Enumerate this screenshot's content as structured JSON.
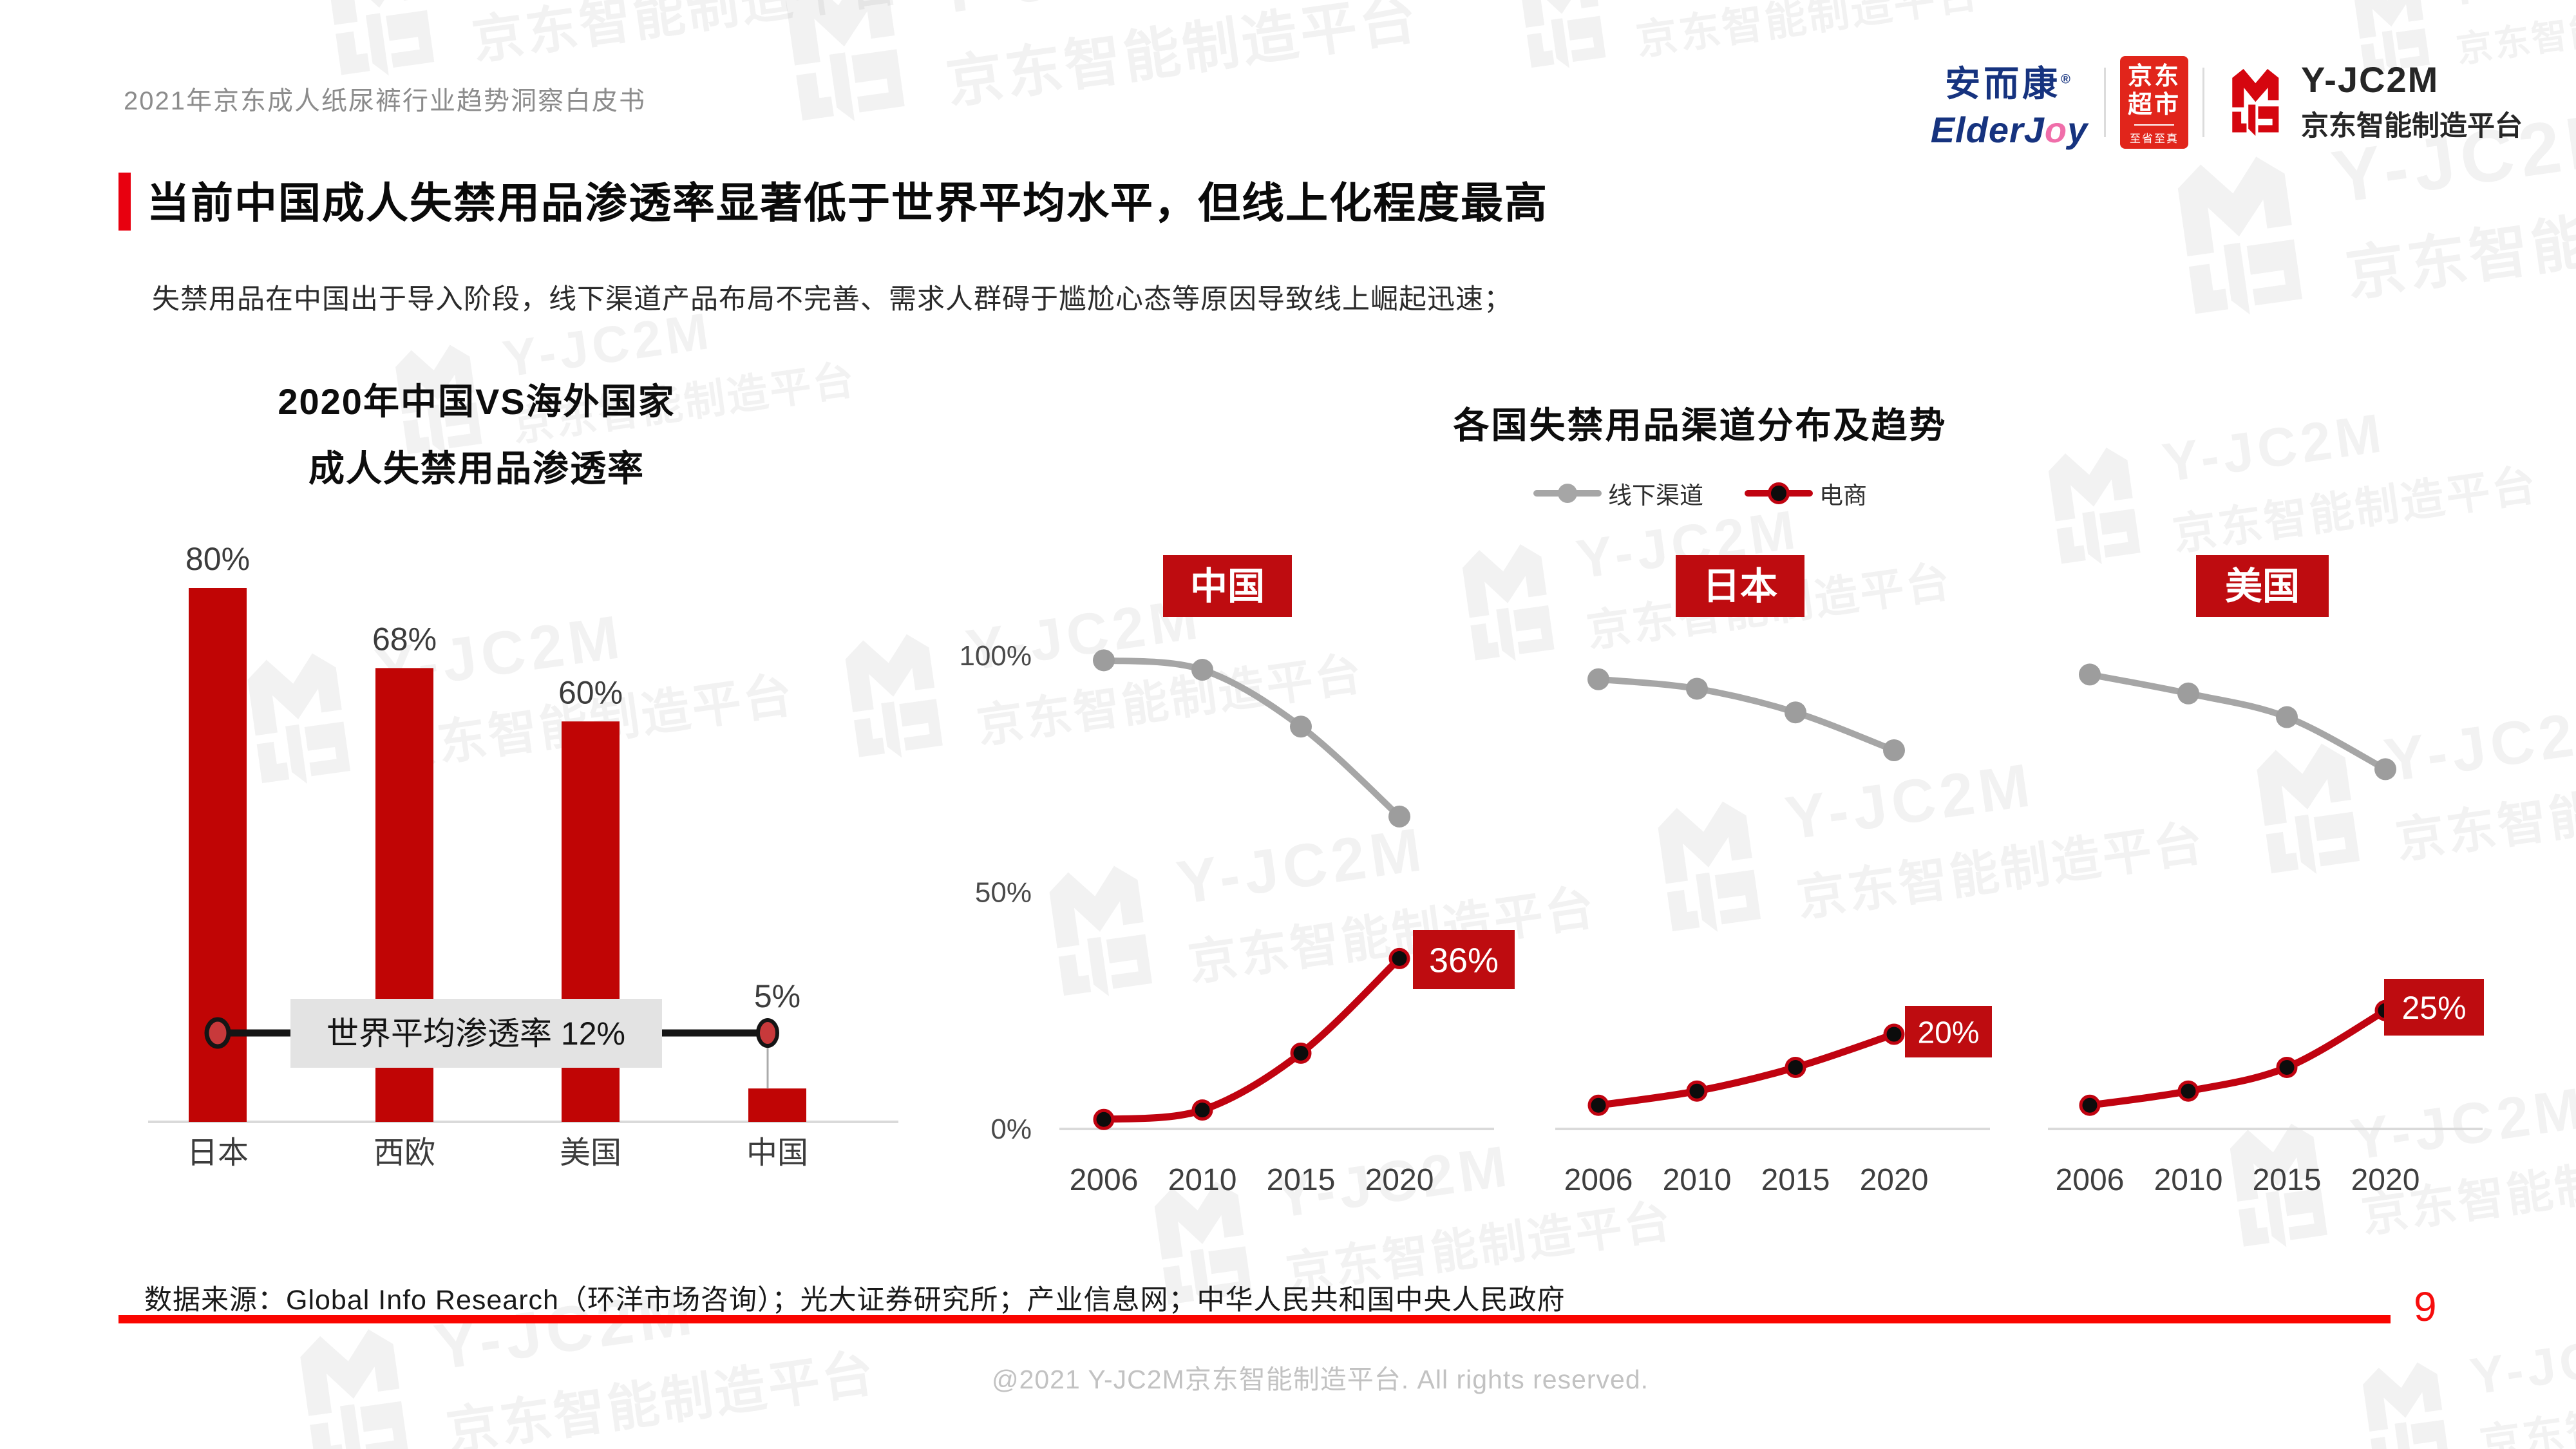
{
  "header": {
    "text": "2021年京东成人纸尿裤行业趋势洞察白皮书"
  },
  "logos": {
    "elderjoy_cn": "安而康",
    "elderjoy_reg": "®",
    "elderjoy_en_1": "ElderJ",
    "elderjoy_en_2": "o",
    "elderjoy_en_3": "y",
    "jd_market_line1": "京东",
    "jd_market_line2": "超市",
    "jd_market_sub": "至省至真",
    "y_jc2m_name": "Y-JC2M",
    "y_jc2m_sub": "京东智能制造平台"
  },
  "title_block": {
    "title": "当前中国成人失禁用品渗透率显著低于世界平均水平，但线上化程度最高",
    "subtitle": "失禁用品在中国出于导入阶段，线下渠道产品布局不完善、需求人群碍于尴尬心态等原因导致线上崛起迅速；"
  },
  "right_section": {
    "title": "各国失禁用品渠道分布及趋势",
    "legend": [
      {
        "label": "线下渠道",
        "color": "#A6A6A6"
      },
      {
        "label": "电商",
        "color": "#C00310"
      }
    ],
    "y_ticks": [
      "100%",
      "50%",
      "0%"
    ],
    "y_tick_values": [
      100,
      50,
      0
    ]
  },
  "footer": {
    "source": "数据来源：Global Info Research（环洋市场咨询）；光大证券研究所；产业信息网；中华人民共和国中央人民政府",
    "page_number": "9",
    "copyright": "@2021 Y-JC2M京东智能制造平台. All rights reserved."
  },
  "watermark": {
    "line1": "Y-JC2M",
    "line2": "京东智能制造平台"
  },
  "colors": {
    "bar_red": "#C00505",
    "box_red": "#BE0C10",
    "ecom_line_red": "#C00310",
    "offline_gray": "#A6A6A6",
    "marker_red": "#E8000F",
    "divider_red": "#FA0500",
    "page_red": "#F60D0D",
    "annotation_black": "#151515",
    "annotation_box_gray": "#E3E3E3",
    "axis_gray": "#DADADA",
    "label_gray": "#3C3C3C"
  },
  "chart_data": [
    {
      "type": "bar",
      "title_lines": [
        "2020年中国VS海外国家",
        "成人失禁用品渗透率"
      ],
      "categories": [
        "日本",
        "西欧",
        "美国",
        "中国"
      ],
      "values": [
        80,
        68,
        60,
        5
      ],
      "value_labels": [
        "80%",
        "68%",
        "60%",
        "5%"
      ],
      "ylim": [
        0,
        100
      ],
      "grid": false,
      "annotation": {
        "label": "世界平均渗透率 12%",
        "value": 12
      }
    },
    {
      "type": "line",
      "country": "中国",
      "x": [
        "2006",
        "2010",
        "2015",
        "2020"
      ],
      "ylim": [
        0,
        100
      ],
      "series": [
        {
          "name": "线下渠道",
          "color": "#A6A6A6",
          "values": [
            99,
            97,
            85,
            66
          ]
        },
        {
          "name": "电商",
          "color": "#C00310",
          "values": [
            2,
            4,
            16,
            36
          ]
        }
      ],
      "end_label": "36%"
    },
    {
      "type": "line",
      "country": "日本",
      "x": [
        "2006",
        "2010",
        "2015",
        "2020"
      ],
      "ylim": [
        0,
        100
      ],
      "series": [
        {
          "name": "线下渠道",
          "color": "#A6A6A6",
          "values": [
            95,
            93,
            88,
            80
          ]
        },
        {
          "name": "电商",
          "color": "#C00310",
          "values": [
            5,
            8,
            13,
            20
          ]
        }
      ],
      "end_label": "20%"
    },
    {
      "type": "line",
      "country": "美国",
      "x": [
        "2006",
        "2010",
        "2015",
        "2020"
      ],
      "ylim": [
        0,
        100
      ],
      "series": [
        {
          "name": "线下渠道",
          "color": "#A6A6A6",
          "values": [
            96,
            92,
            87,
            76
          ]
        },
        {
          "name": "电商",
          "color": "#C00310",
          "values": [
            5,
            8,
            13,
            25
          ]
        }
      ],
      "end_label": "25%"
    }
  ]
}
